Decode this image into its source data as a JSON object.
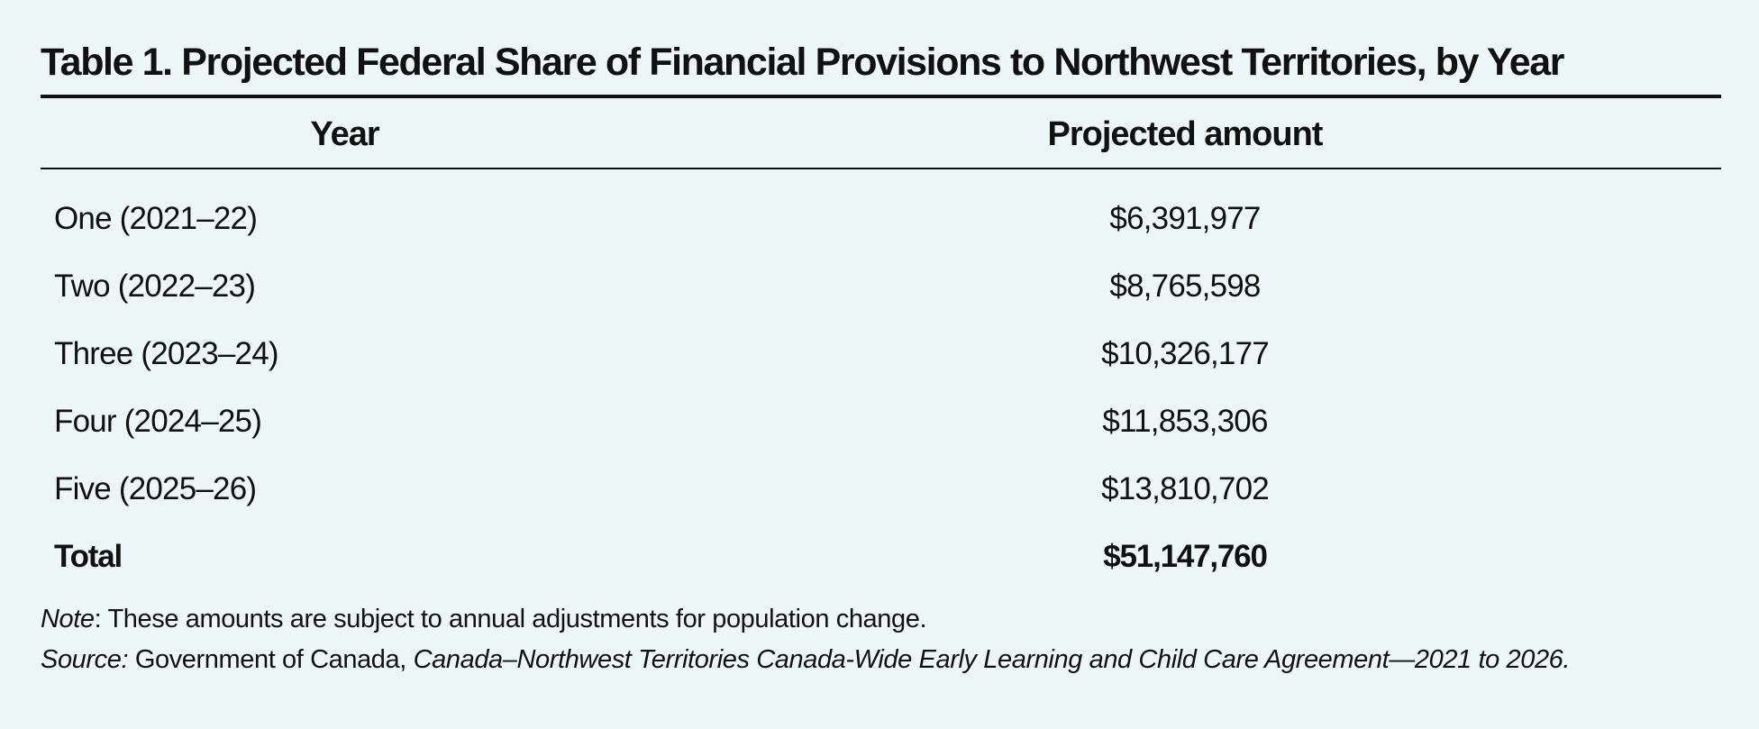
{
  "table": {
    "title": "Table 1. Projected Federal Share of Financial Provisions to Northwest Territories, by Year",
    "headers": {
      "year": "Year",
      "amount": "Projected amount"
    },
    "rows": [
      {
        "year": "One (2021–22)",
        "amount": "$6,391,977"
      },
      {
        "year": "Two (2022–23)",
        "amount": "$8,765,598"
      },
      {
        "year": "Three (2023–24)",
        "amount": "$10,326,177"
      },
      {
        "year": "Four (2024–25)",
        "amount": "$11,853,306"
      },
      {
        "year": "Five (2025–26)",
        "amount": "$13,810,702"
      }
    ],
    "total": {
      "year": "Total",
      "amount": "$51,147,760"
    }
  },
  "notes": {
    "note_label": "Note",
    "note_text": ": These amounts are subject to annual adjustments for population change.",
    "source_label": "Source:",
    "source_text": " Government of Canada, ",
    "source_title": "Canada–Northwest Territories Canada-Wide Early Learning and Child Care Agreement—2021 to 2026."
  },
  "colors": {
    "background": "#eef7f8",
    "text": "#111111"
  }
}
